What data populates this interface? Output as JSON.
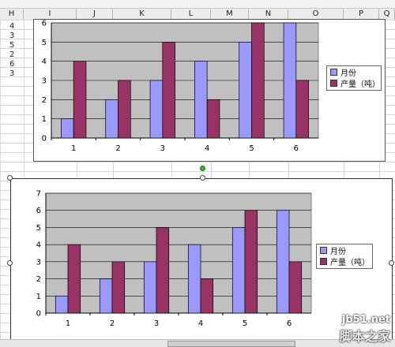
{
  "spreadsheet": {
    "columns": [
      "H",
      "I",
      "J",
      "K",
      "L",
      "M",
      "N",
      "O",
      "P",
      "Q"
    ],
    "row_values": [
      "4",
      "3",
      "5",
      "2",
      "6",
      "3"
    ]
  },
  "chart_data": [
    {
      "type": "bar",
      "categories": [
        "1",
        "2",
        "3",
        "4",
        "5",
        "6"
      ],
      "series": [
        {
          "name": "月份",
          "values": [
            1,
            2,
            3,
            4,
            5,
            6
          ],
          "color": "#9999ff"
        },
        {
          "name": "产量（吨）",
          "values": [
            4,
            3,
            5,
            2,
            6,
            3
          ],
          "color": "#993366"
        }
      ],
      "ylim": [
        0,
        6
      ],
      "yticks": [
        "0",
        "1",
        "2",
        "3",
        "4",
        "5",
        "6"
      ],
      "grid": true,
      "plot_bg": "#c0c0c0",
      "legend": "right"
    },
    {
      "type": "bar",
      "categories": [
        "1",
        "2",
        "3",
        "4",
        "5",
        "6"
      ],
      "series": [
        {
          "name": "月份",
          "values": [
            1,
            2,
            3,
            4,
            5,
            6
          ],
          "color": "#9999ff"
        },
        {
          "name": "产量（吨）",
          "values": [
            4,
            3,
            5,
            2,
            6,
            3
          ],
          "color": "#993366"
        }
      ],
      "ylim": [
        0,
        7
      ],
      "yticks": [
        "0",
        "1",
        "2",
        "3",
        "4",
        "5",
        "6",
        "7"
      ],
      "grid": true,
      "plot_bg": "#c0c0c0",
      "legend": "right"
    }
  ],
  "watermark": {
    "line1": "jb51.net",
    "line2": "脚本之家"
  }
}
